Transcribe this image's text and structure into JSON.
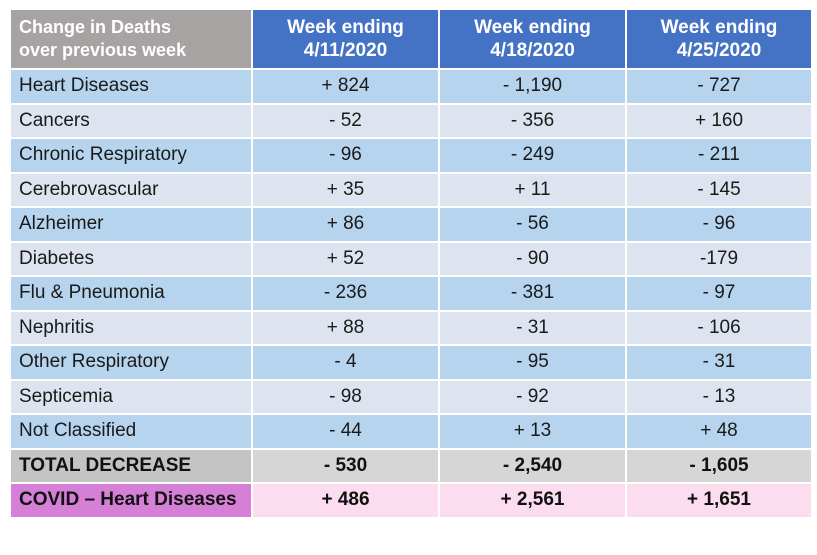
{
  "table": {
    "corner_header": [
      "Change in Deaths",
      "over previous week"
    ],
    "columns": [
      {
        "line1": "Week ending",
        "line2": "4/11/2020"
      },
      {
        "line1": "Week ending",
        "line2": "4/18/2020"
      },
      {
        "line1": "Week ending",
        "line2": "4/25/2020"
      }
    ],
    "rows": [
      {
        "label": "Heart Diseases",
        "values": [
          "+ 824",
          "- 1,190",
          "- 727"
        ]
      },
      {
        "label": "Cancers",
        "values": [
          "- 52",
          "- 356",
          "+ 160"
        ]
      },
      {
        "label": "Chronic Respiratory",
        "values": [
          "- 96",
          "- 249",
          "- 211"
        ]
      },
      {
        "label": "Cerebrovascular",
        "values": [
          "+ 35",
          "+  11",
          "- 145"
        ]
      },
      {
        "label": "Alzheimer",
        "values": [
          "+ 86",
          "- 56",
          "- 96"
        ]
      },
      {
        "label": "Diabetes",
        "values": [
          "+ 52",
          "- 90",
          "-179"
        ]
      },
      {
        "label": "Flu & Pneumonia",
        "values": [
          "- 236",
          "- 381",
          "- 97"
        ]
      },
      {
        "label": "Nephritis",
        "values": [
          "+ 88",
          "- 31",
          "- 106"
        ]
      },
      {
        "label": "Other Respiratory",
        "values": [
          "- 4",
          "- 95",
          "- 31"
        ]
      },
      {
        "label": "Septicemia",
        "values": [
          "- 98",
          "- 92",
          "- 13"
        ]
      },
      {
        "label": "Not Classified",
        "values": [
          "- 44",
          "+ 13",
          "+ 48"
        ]
      }
    ],
    "total_row": {
      "label": "TOTAL DECREASE",
      "values": [
        "- 530",
        "- 2,540",
        "- 1,605"
      ]
    },
    "covid_row": {
      "label": "COVID – Heart Diseases",
      "values": [
        "+ 486",
        "+ 2,561",
        "+ 1,651"
      ]
    }
  },
  "colors": {
    "header_blue": "#4472c4",
    "corner_gray": "#a8a3a3",
    "row_blue": "#b7d4ee",
    "row_light": "#dde4f0",
    "total_gray": "#d6d6d6",
    "covid_label_purple": "#d57fd6",
    "covid_pink": "#fcdcef"
  }
}
